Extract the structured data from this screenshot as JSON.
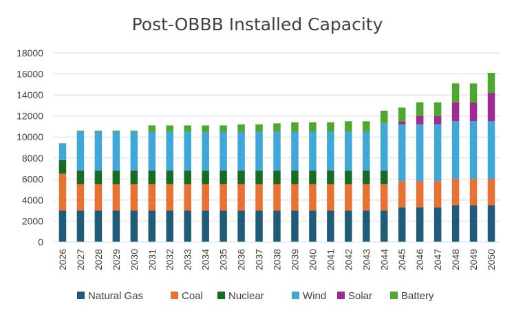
{
  "chart_data": {
    "type": "bar",
    "stacked": true,
    "title": "Post-OBBB Installed Capacity",
    "xlabel": "",
    "ylabel": "",
    "ylim": [
      0,
      18000
    ],
    "ytick_step": 2000,
    "yticks": [
      "0",
      "2000",
      "4000",
      "6000",
      "8000",
      "10000",
      "12000",
      "14000",
      "16000",
      "18000"
    ],
    "grid": true,
    "legend_position": "bottom",
    "categories": [
      "2026",
      "2027",
      "2028",
      "2029",
      "2030",
      "2031",
      "2032",
      "2033",
      "2034",
      "2035",
      "2036",
      "2037",
      "2038",
      "2039",
      "2040",
      "2041",
      "2042",
      "2043",
      "2044",
      "2045",
      "2046",
      "2047",
      "2048",
      "2049",
      "2050"
    ],
    "series": [
      {
        "name": "Natural Gas",
        "color": "#1f5c7a",
        "values": [
          3000,
          3000,
          3000,
          3000,
          3000,
          3000,
          3000,
          3000,
          3000,
          3000,
          3000,
          3000,
          3000,
          3000,
          3000,
          3000,
          3000,
          3000,
          3000,
          3300,
          3300,
          3300,
          3500,
          3500,
          3500
        ]
      },
      {
        "name": "Coal",
        "color": "#e97132",
        "values": [
          3500,
          2500,
          2500,
          2500,
          2500,
          2500,
          2500,
          2500,
          2500,
          2500,
          2500,
          2500,
          2500,
          2500,
          2500,
          2500,
          2500,
          2500,
          2500,
          2500,
          2500,
          2500,
          2500,
          2500,
          2500
        ]
      },
      {
        "name": "Nuclear",
        "color": "#196b24",
        "values": [
          1300,
          1300,
          1300,
          1300,
          1300,
          1300,
          1300,
          1300,
          1300,
          1300,
          1300,
          1300,
          1300,
          1300,
          1300,
          1300,
          1300,
          1300,
          1300,
          0,
          0,
          0,
          0,
          0,
          0
        ]
      },
      {
        "name": "Wind",
        "color": "#3fa8d8",
        "values": [
          1500,
          3700,
          3700,
          3700,
          3700,
          3700,
          3700,
          3700,
          3700,
          3700,
          3700,
          3700,
          3700,
          3700,
          3700,
          3700,
          3700,
          3700,
          4500,
          5400,
          5400,
          5400,
          5500,
          5500,
          5500
        ]
      },
      {
        "name": "Solar",
        "color": "#a02b93",
        "values": [
          0,
          0,
          0,
          0,
          0,
          0,
          0,
          0,
          0,
          0,
          0,
          0,
          0,
          0,
          0,
          0,
          0,
          0,
          0,
          300,
          800,
          800,
          1800,
          1800,
          2700
        ]
      },
      {
        "name": "Battery",
        "color": "#4ea72e",
        "values": [
          100,
          100,
          100,
          100,
          100,
          600,
          600,
          600,
          600,
          600,
          700,
          700,
          800,
          900,
          900,
          900,
          1000,
          1000,
          1200,
          1300,
          1300,
          1300,
          1800,
          1800,
          1900
        ]
      }
    ]
  }
}
